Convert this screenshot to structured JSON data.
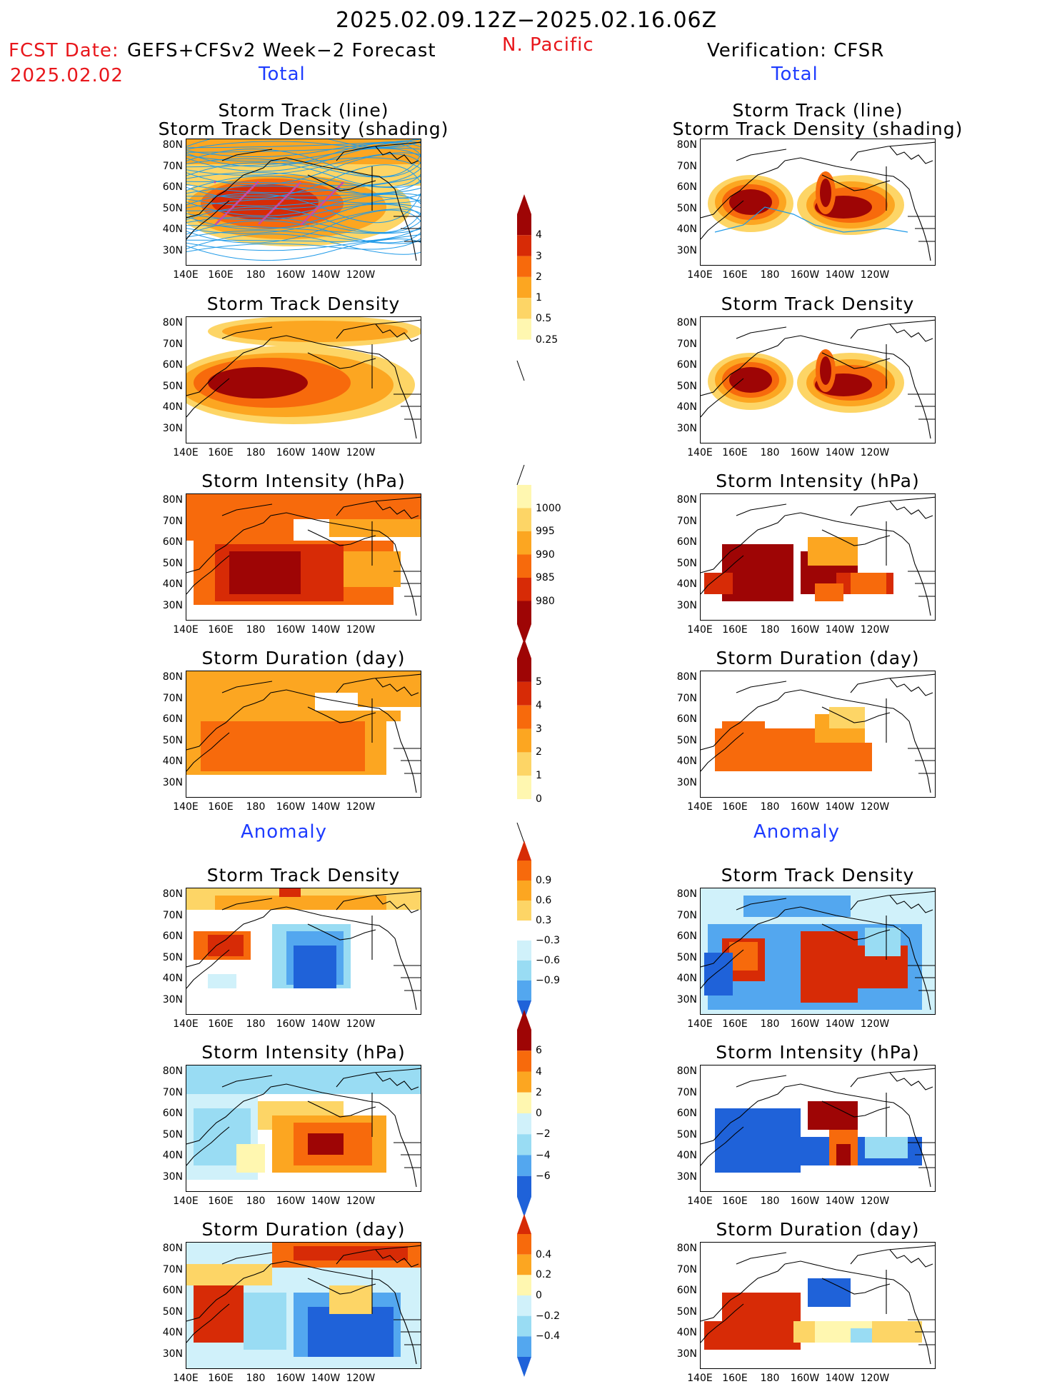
{
  "header": {
    "period": "2025.02.09.12Z−2025.02.16.06Z",
    "region": "N. Pacific",
    "fcst_label": "FCST Date:",
    "fcst_model": "GEFS+CFSv2 Week−2 Forecast",
    "fcst_date": "2025.02.02",
    "verif": "Verification: CFSR"
  },
  "sections": {
    "total": "Total",
    "anomaly": "Anomaly"
  },
  "panels": {
    "track": [
      "Storm Track (line)",
      "Storm Track Density (shading)"
    ],
    "density": "Storm Track Density",
    "intensity": "Storm Intensity (hPa)",
    "duration": "Storm Duration (day)"
  },
  "axes": {
    "lat": [
      "80N",
      "70N",
      "60N",
      "50N",
      "40N",
      "30N"
    ],
    "lon": [
      "140E",
      "160E",
      "180",
      "160W",
      "140W",
      "120W"
    ]
  },
  "colorbars": {
    "density_total": [
      "4",
      "3",
      "2",
      "1",
      "0.5",
      "0.25"
    ],
    "intensity_total": [
      "1000",
      "995",
      "990",
      "985",
      "980"
    ],
    "duration_total": [
      "5",
      "4",
      "3",
      "2",
      "1",
      "0"
    ],
    "density_anom": [
      "0.9",
      "0.6",
      "0.3",
      "−0.3",
      "−0.6",
      "−0.9"
    ],
    "intensity_anom": [
      "6",
      "4",
      "2",
      "0",
      "−2",
      "−4",
      "−6"
    ],
    "duration_anom": [
      "0.4",
      "0.2",
      "0",
      "−0.2",
      "−0.4"
    ]
  },
  "colors": {
    "warm": [
      "#fff7b0",
      "#fdd566",
      "#fca621",
      "#f76a0c",
      "#d72b06",
      "#9e0505"
    ],
    "cool": [
      "#d0f1fa",
      "#99dcf3",
      "#53a7ef",
      "#1f62d9"
    ],
    "track_line": "#1f9ae8",
    "track_dots": "#c44da8"
  }
}
